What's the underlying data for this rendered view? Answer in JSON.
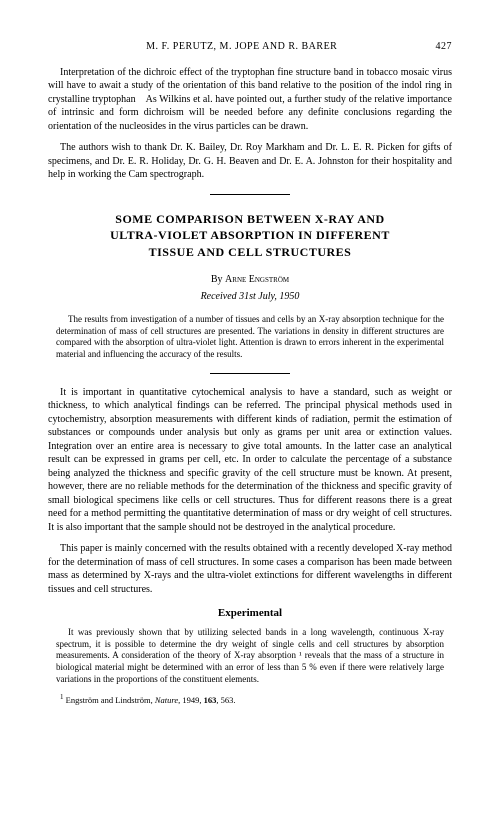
{
  "header": {
    "authors": "M. F. PERUTZ, M. JOPE AND R. BARER",
    "page": "427"
  },
  "top_section": {
    "para1": "Interpretation of the dichroic effect of the tryptophan fine structure band in tobacco mosaic virus will have to await a study of the orientation of this band relative to the position of the indol ring in crystalline trypto­phan As Wilkins et al. have pointed out, a further study of the relative importance of intrinsic and form dichroism will be needed before any definite conclusions regarding the orientation of the nucleosides in the virus particles can be drawn.",
    "para2": "The authors wish to thank Dr. K. Bailey, Dr. Roy Markham and Dr. L. E. R. Picken for gifts of specimens, and Dr. E. R. Holiday, Dr. G. H. Beaven and Dr. E. A. Johnston for their hospitality and help in working the Cam spectrograph."
  },
  "article": {
    "title_line1": "SOME COMPARISON BETWEEN X-RAY AND",
    "title_line2": "ULTRA-VIOLET ABSORPTION IN DIFFERENT",
    "title_line3": "TISSUE AND CELL STRUCTURES",
    "by": "By",
    "author": "Arne Engström",
    "received": "Received 31st July, 1950",
    "abstract": "The results from investigation of a number of tissues and cells by an X-ray absorption technique for the determination of mass of cell structures are pre­sented. The variations in density in different structures are compared with the absorption of ultra-violet light. Attention is drawn to errors inherent in the experimental material and influencing the accuracy of the results.",
    "body_para1": "It is important in quantitative cytochemical analysis to have a standard, such as weight or thickness, to which analytical findings can be referred. The principal physical methods used in cytochemistry, absorption measure­ments with different kinds of radiation, permit the estimation of substances or compounds under analysis but only as grams per unit area or extinction values. Integration over an entire area is necessary to give total amounts. In the latter case an analytical result can be expressed in grams per cell, etc. In order to calculate the percentage of a substance being analyzed the thickness and specific gravity of the cell structure must be known. At present, however, there are no reliable methods for the determination of the thickness and specific gravity of small biological specimens like cells or cell structures. Thus for different reasons there is a great need for a method permitting the quantitative determination of mass or dry weight of cell structures. It is also important that the sample should not be destroyed in the analytical procedure.",
    "body_para2": "This paper is mainly concerned with the results obtained with a recently developed X-ray method for the determination of mass of cell structures. In some cases a comparison has been made between mass as determined by X-rays and the ultra-violet extinctions for different wavelengths in different tissues and cell structures.",
    "experimental_head": "Experimental",
    "exp_para": "It was previously shown that by utilizing selected bands in a long wavelength, continuous X-ray spectrum, it is possible to determine the dry weight of single cells and cell structures by absorption measurements. A consideration of the theory of X-ray absorption ¹ reveals that the mass of a structure in biological material might be determined with an error of less than 5 % even if there were relatively large variations in the proportions of the constituent elements.",
    "footnote_marker": "1",
    "footnote_text": "Engström and Lindström, Nature, 1949, 163, 563."
  }
}
